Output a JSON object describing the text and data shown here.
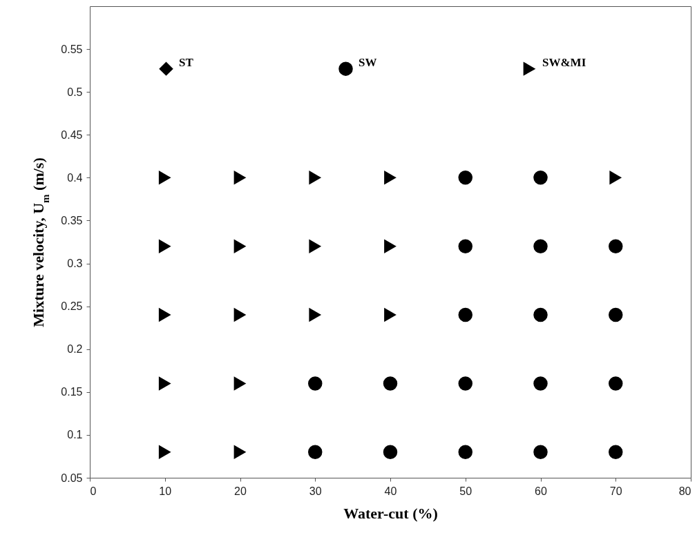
{
  "chart_data": {
    "type": "scatter",
    "xlabel": "Water-cut (%)",
    "ylabel": "Mixture velocity, U$_{m}$ (m/s)",
    "xlim": [
      0,
      80
    ],
    "xticks": [
      0,
      10,
      20,
      30,
      40,
      50,
      60,
      70,
      80
    ],
    "ylim": [
      0.05,
      0.6
    ],
    "yticks": [
      0.05,
      0.1,
      0.15,
      0.2,
      0.25,
      0.3,
      0.35,
      0.4,
      0.45,
      0.5,
      0.55
    ],
    "grid": false,
    "legend": "top",
    "series": [
      {
        "name": "ST",
        "color": "#000000",
        "marker": "diamond"
      },
      {
        "name": "SW",
        "color": "#000000",
        "marker": "circle",
        "x": [
          30,
          30,
          40,
          40,
          50,
          50,
          50,
          50,
          50,
          60,
          60,
          60,
          60,
          60,
          70,
          70,
          70,
          70
        ],
        "values": [
          0.08,
          0.16,
          0.08,
          0.16,
          0.08,
          0.16,
          0.24,
          0.32,
          0.4,
          0.08,
          0.16,
          0.24,
          0.32,
          0.4,
          0.08,
          0.16,
          0.24,
          0.32
        ]
      },
      {
        "name": "SW&MI",
        "color": "#000000",
        "marker": "triangle",
        "x": [
          10,
          10,
          10,
          10,
          10,
          20,
          20,
          20,
          20,
          20,
          30,
          30,
          30,
          40,
          40,
          40,
          70
        ],
        "values": [
          0.08,
          0.16,
          0.24,
          0.32,
          0.4,
          0.08,
          0.16,
          0.24,
          0.32,
          0.4,
          0.24,
          0.32,
          0.4,
          0.24,
          0.32,
          0.4,
          0.4
        ]
      }
    ]
  }
}
